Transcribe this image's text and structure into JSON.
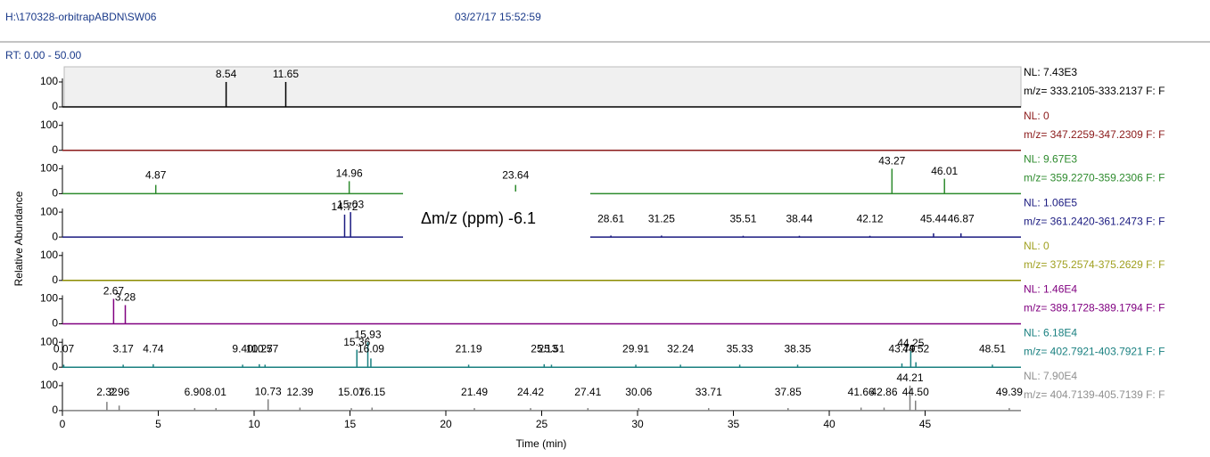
{
  "header": {
    "file": "H:\\170328-orbitrapABDN\\SW06",
    "date": "03/27/17 15:52:59"
  },
  "chart_data": {
    "type": "chromatogram",
    "range_label": "RT: 0.00 - 50.00",
    "xlabel": "Time (min)",
    "ylabel": "Relative Abundance",
    "xlim": [
      0,
      50
    ],
    "xticks": [
      0,
      5,
      10,
      15,
      20,
      25,
      30,
      35,
      40,
      45
    ],
    "ylim": [
      0,
      100
    ],
    "yticks": [
      0,
      100
    ],
    "annotation": "Δm/z  (ppm) -6.1",
    "series": [
      {
        "nl": "NL: 7.43E3",
        "name": "m/z= 333.2105-333.2137 F: F",
        "color": "#000000",
        "label_color": "#000000",
        "background": "#f0f0f0",
        "peaks": [
          {
            "x": 8.54,
            "y": 100
          },
          {
            "x": 11.65,
            "y": 100
          }
        ]
      },
      {
        "nl": "NL: 0",
        "name": "m/z= 347.2259-347.2309 F: F",
        "color": "#8b1a1a",
        "label_color": "#8b1a1a",
        "peaks": []
      },
      {
        "nl": "NL: 9.67E3",
        "name": "m/z= 359.2270-359.2306 F: F",
        "color": "#2e8b2e",
        "label_color": "#2e8b2e",
        "peaks": [
          {
            "x": 4.87,
            "y": 35
          },
          {
            "x": 14.96,
            "y": 50
          },
          {
            "x": 23.64,
            "y": 35
          },
          {
            "x": 43.27,
            "y": 100
          },
          {
            "x": 46.01,
            "y": 60
          }
        ]
      },
      {
        "nl": "NL: 1.06E5",
        "name": "m/z= 361.2420-361.2473 F: F",
        "color": "#1a1a80",
        "label_color": "#1a1a80",
        "peaks": [
          {
            "x": 14.72,
            "y": 90
          },
          {
            "x": 15.03,
            "y": 100
          },
          {
            "x": 28.61,
            "y": 6
          },
          {
            "x": 31.25,
            "y": 6
          },
          {
            "x": 35.51,
            "y": 5
          },
          {
            "x": 38.44,
            "y": 5
          },
          {
            "x": 42.12,
            "y": 5
          },
          {
            "x": 45.44,
            "y": 15
          },
          {
            "x": 46.87,
            "y": 15
          }
        ]
      },
      {
        "nl": "NL: 0",
        "name": "m/z= 375.2574-375.2629 F: F",
        "color": "#8b8b00",
        "label_color": "#a0a020",
        "peaks": []
      },
      {
        "nl": "NL: 1.46E4",
        "name": "m/z= 389.1728-389.1794 F: F",
        "color": "#800080",
        "label_color": "#800080",
        "peaks": [
          {
            "x": 2.67,
            "y": 100
          },
          {
            "x": 3.28,
            "y": 75
          }
        ]
      },
      {
        "nl": "NL: 6.18E4",
        "name": "m/z= 402.7921-403.7921 F: F",
        "color": "#1a8080",
        "label_color": "#1a8080",
        "peaks": [
          {
            "x": 0.07,
            "y": 10
          },
          {
            "x": 3.17,
            "y": 10
          },
          {
            "x": 4.74,
            "y": 12
          },
          {
            "x": {
              "value": 9.4,
              "label": "9.40"
            },
            "y": 10
          },
          {
            "x": 10.27,
            "y": 12
          },
          {
            "x": 10.57,
            "y": 10
          },
          {
            "x": 15.36,
            "y": 70
          },
          {
            "x": 15.93,
            "y": 100
          },
          {
            "x": 16.09,
            "y": 35
          },
          {
            "x": 21.19,
            "y": 10
          },
          {
            "x": 25.13,
            "y": 12
          },
          {
            "x": 25.51,
            "y": 10
          },
          {
            "x": 29.91,
            "y": 10
          },
          {
            "x": 32.24,
            "y": 10
          },
          {
            "x": 35.33,
            "y": 10
          },
          {
            "x": 38.35,
            "y": 10
          },
          {
            "x": 43.79,
            "y": 15
          },
          {
            "x": 44.25,
            "y": 65
          },
          {
            "x": 44.52,
            "y": 20
          },
          {
            "x": 48.51,
            "y": 10
          }
        ]
      },
      {
        "nl": "NL: 7.90E4",
        "name": "m/z= 404.7139-405.7139 F: F",
        "color": "#808080",
        "label_color": "#909090",
        "peaks": [
          {
            "x": 2.32,
            "y": 35
          },
          {
            "x": 2.96,
            "y": 20
          },
          {
            "x": {
              "value": 6.9,
              "label": "6.90"
            },
            "y": 10
          },
          {
            "x": 8.01,
            "y": 10
          },
          {
            "x": 10.73,
            "y": 45
          },
          {
            "x": 12.39,
            "y": 12
          },
          {
            "x": 15.07,
            "y": 10
          },
          {
            "x": 16.15,
            "y": 12
          },
          {
            "x": 21.49,
            "y": 10
          },
          {
            "x": 24.42,
            "y": 10
          },
          {
            "x": 27.41,
            "y": 10
          },
          {
            "x": 30.06,
            "y": 10
          },
          {
            "x": 33.71,
            "y": 10
          },
          {
            "x": 37.85,
            "y": 10
          },
          {
            "x": 41.66,
            "y": 12
          },
          {
            "x": 42.86,
            "y": 12
          },
          {
            "x": 44.21,
            "y": 100
          },
          {
            "x": 44.5,
            "label": "44.50",
            "y": 40
          },
          {
            "x": 49.39,
            "y": 10
          }
        ]
      }
    ]
  }
}
